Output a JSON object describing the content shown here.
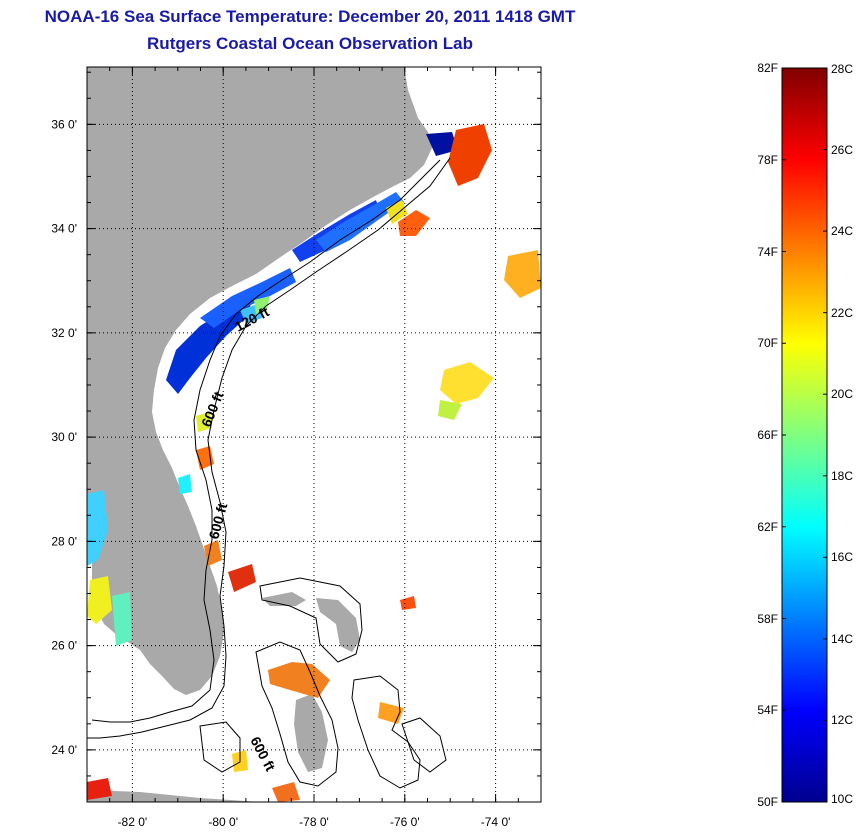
{
  "title": {
    "line1": "NOAA-16 Sea Surface Temperature:  December 20, 2011 1418 GMT",
    "line2": "Rutgers Coastal Ocean Observation Lab"
  },
  "map": {
    "lon_range": [
      -83,
      -73
    ],
    "lat_range": [
      23,
      37.1
    ],
    "lon_ticks": [
      {
        "value": -82,
        "label": "-82 0'"
      },
      {
        "value": -80,
        "label": "-80 0'"
      },
      {
        "value": -78,
        "label": "-78 0'"
      },
      {
        "value": -76,
        "label": "-76 0'"
      },
      {
        "value": -74,
        "label": "-74 0'"
      }
    ],
    "lat_ticks": [
      {
        "value": 36,
        "label": "36 0'"
      },
      {
        "value": 34,
        "label": "34 0'"
      },
      {
        "value": 32,
        "label": "32 0'"
      },
      {
        "value": 30,
        "label": "30 0'"
      },
      {
        "value": 28,
        "label": "28 0'"
      },
      {
        "value": 26,
        "label": "26 0'"
      },
      {
        "value": 24,
        "label": "24 0'"
      }
    ],
    "grid": "dotted",
    "land_color": "#a9a9a9",
    "contour_labels": [
      {
        "text": "120 ft"
      },
      {
        "text": "600 ft"
      },
      {
        "text": "600 ft"
      },
      {
        "text": "600 ft"
      }
    ]
  },
  "colorbar": {
    "range_celsius": [
      10,
      28
    ],
    "range_fahrenheit": [
      50,
      82
    ],
    "fahrenheit_labels": [
      "82F",
      "78F",
      "74F",
      "70F",
      "66F",
      "62F",
      "58F",
      "54F",
      "50F"
    ],
    "celsius_labels": [
      "28C",
      "26C",
      "24C",
      "22C",
      "20C",
      "18C",
      "16C",
      "14C",
      "12C",
      "10C"
    ],
    "colormap": "jet"
  }
}
